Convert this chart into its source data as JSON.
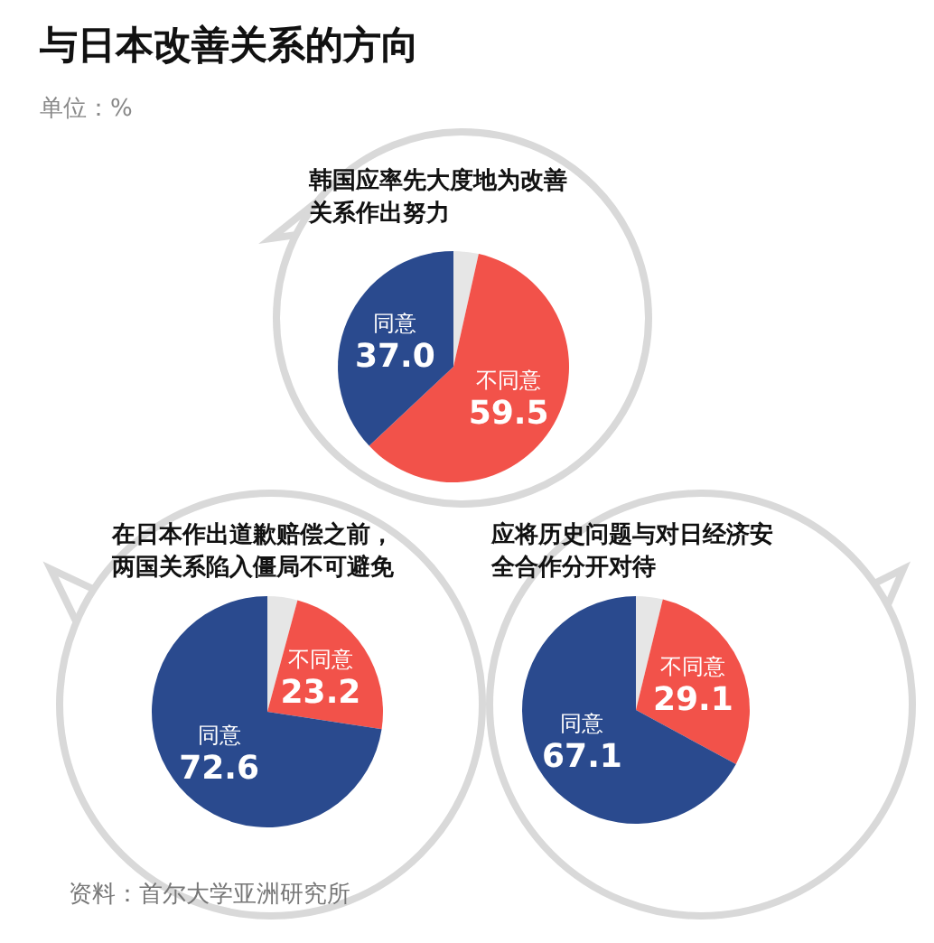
{
  "chart_data": [
    {
      "type": "pie",
      "title": "韩国应率先大度地为改善关系作出努力",
      "annotations": [
        "与日本改善关系的方向",
        "单位：%",
        "资料：首尔大学亚洲研究所"
      ],
      "categories": [
        null,
        "不同意",
        "同意"
      ],
      "values": [
        3.5,
        59.5,
        37.0
      ],
      "value_labels": [
        null,
        "59.5",
        "37.0"
      ],
      "colors": [
        "#e6e6e6",
        "#f2524a",
        "#2a4a8e"
      ]
    },
    {
      "type": "pie",
      "title": "在日本作出道歉赔偿之前，两国关系陷入僵局不可避免",
      "categories": [
        null,
        "不同意",
        "同意"
      ],
      "values": [
        4.2,
        23.2,
        72.6
      ],
      "value_labels": [
        null,
        "23.2",
        "72.6"
      ],
      "colors": [
        "#e6e6e6",
        "#f2524a",
        "#2a4a8e"
      ]
    },
    {
      "type": "pie",
      "title": "应将历史问题与对日经济安全合作分开对待",
      "categories": [
        null,
        "不同意",
        "同意"
      ],
      "values": [
        3.8,
        29.1,
        67.1
      ],
      "value_labels": [
        null,
        "29.1",
        "67.1"
      ],
      "colors": [
        "#e6e6e6",
        "#f2524a",
        "#2a4a8e"
      ]
    }
  ]
}
